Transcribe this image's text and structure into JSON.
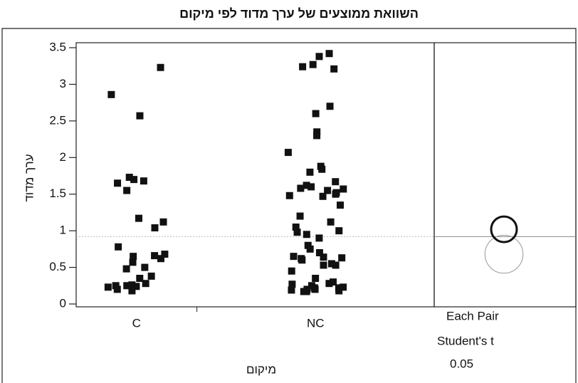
{
  "chart_data": {
    "type": "scatter",
    "title": "השוואת ממוצעים של ערך מדוד לפי מיקום",
    "x_label": "מיקום",
    "y_label": "ערך מדוד",
    "categories": [
      "C",
      "NC"
    ],
    "values": [
      [
        3.23,
        2.86,
        2.57,
        1.73,
        1.7,
        1.68,
        1.65,
        1.55,
        1.17,
        1.12,
        1.04,
        0.78,
        0.68,
        0.66,
        0.65,
        0.62,
        0.57,
        0.5,
        0.48,
        0.38,
        0.35,
        0.28,
        0.26,
        0.25,
        0.25,
        0.24,
        0.23,
        0.2,
        0.18
      ],
      [
        3.42,
        3.38,
        3.27,
        3.24,
        3.21,
        2.7,
        2.6,
        2.35,
        2.3,
        2.07,
        1.88,
        1.84,
        1.8,
        1.67,
        1.62,
        1.6,
        1.58,
        1.57,
        1.55,
        1.52,
        1.5,
        1.48,
        1.47,
        1.35,
        1.2,
        1.12,
        1.05,
        1.0,
        0.98,
        0.95,
        0.9,
        0.8,
        0.75,
        0.7,
        0.65,
        0.64,
        0.63,
        0.62,
        0.6,
        0.55,
        0.53,
        0.53,
        0.45,
        0.35,
        0.3,
        0.28,
        0.27,
        0.25,
        0.23,
        0.22,
        0.22,
        0.2,
        0.2,
        0.19,
        0.18,
        0.17,
        0.17
      ]
    ],
    "color": "#111111",
    "ylim": [
      0,
      3.5
    ],
    "yticks": [
      0,
      0.5,
      1,
      1.5,
      2,
      2.5,
      3,
      3.5
    ],
    "grand_mean": 0.92,
    "circles": [
      {
        "center": 0.68,
        "radius": 0.26,
        "color": "#999999"
      },
      {
        "center": 1.02,
        "radius": 0.175,
        "color": "#111111"
      }
    ],
    "comparison": {
      "method": "Each Pair",
      "test": "Student's t",
      "alpha": 0.05
    }
  }
}
